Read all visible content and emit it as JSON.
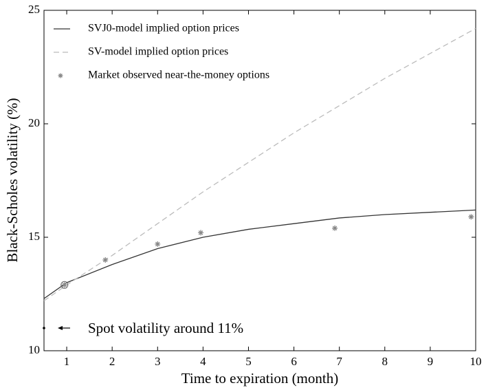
{
  "chart_data": {
    "type": "line",
    "xlabel": "Time to expiration (month)",
    "ylabel": "Black-Scholes volatility (%)",
    "xlim": [
      0.5,
      10
    ],
    "xticks": [
      1,
      2,
      3,
      4,
      5,
      6,
      7,
      8,
      9,
      10
    ],
    "ylim": [
      10,
      25
    ],
    "yticks": [
      10,
      15,
      20,
      25
    ],
    "legend": "upper left",
    "series": [
      {
        "name": "SVJ0-model implied option prices",
        "color": "#333333",
        "style": "solid",
        "x": [
          0.5,
          1,
          2,
          3,
          4,
          5,
          6,
          7,
          8,
          9,
          10
        ],
        "values": [
          12.3,
          13.0,
          13.8,
          14.5,
          15.0,
          15.35,
          15.6,
          15.85,
          16.0,
          16.1,
          16.2
        ]
      },
      {
        "name": "SV-model implied option prices",
        "color": "#bbbbbb",
        "style": "dashed",
        "x": [
          0.5,
          1,
          2,
          3,
          4,
          5,
          6,
          7,
          8,
          9,
          10
        ],
        "values": [
          12.2,
          12.9,
          14.2,
          15.6,
          17.0,
          18.3,
          19.6,
          20.8,
          22.0,
          23.1,
          24.2
        ]
      },
      {
        "name": "Market observed near-the-money options",
        "color": "#888888",
        "style": "marker",
        "x": [
          0.95,
          1.85,
          3.0,
          3.95,
          6.9,
          9.9
        ],
        "values": [
          12.9,
          14.0,
          14.7,
          15.2,
          15.4,
          15.9
        ]
      }
    ],
    "annotation": {
      "text": "Spot volatility around 11%",
      "x": 0.5,
      "y": 11
    }
  }
}
